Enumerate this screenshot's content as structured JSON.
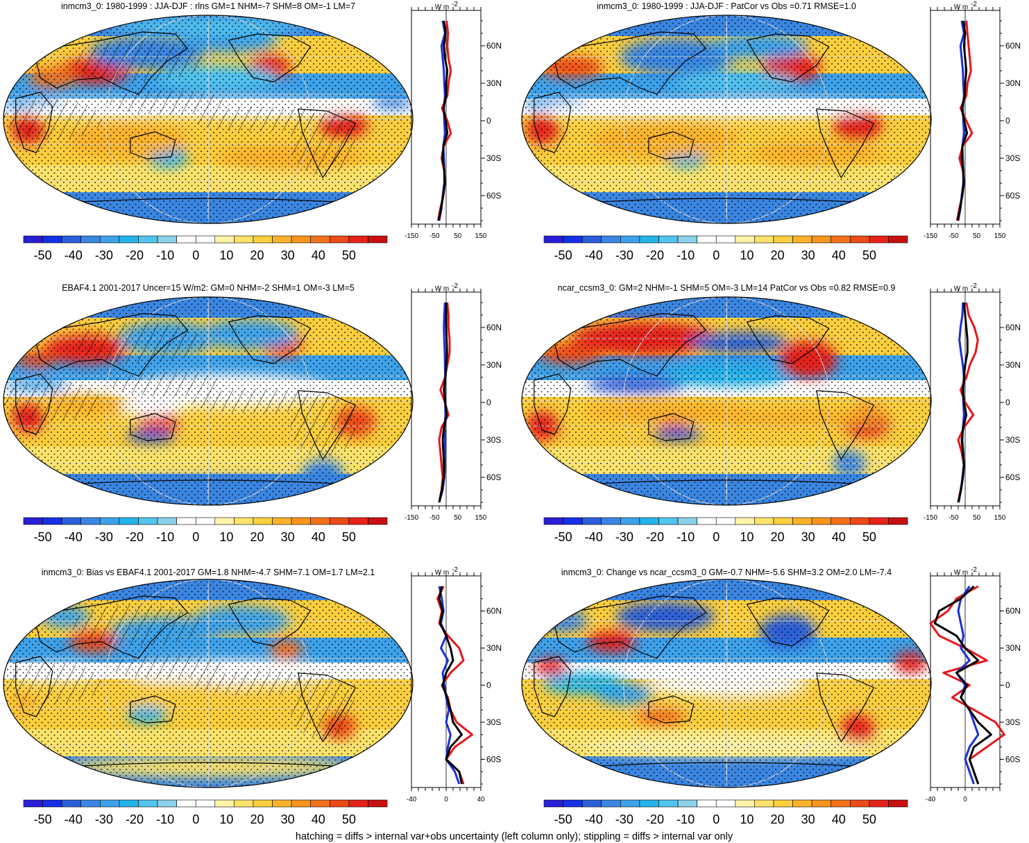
{
  "figure": {
    "footnote": "hatching = diffs > internal var+obs uncertainty (left column only); stippling = diffs > internal var only",
    "unit_label": "W m",
    "unit_exp": "-2",
    "lat_labels": [
      "60N",
      "30N",
      "0",
      "30S",
      "60S"
    ]
  },
  "colors": {
    "scale": [
      "#2a1ed8",
      "#1630e6",
      "#2b5ed9",
      "#3b86e2",
      "#3da2ea",
      "#23b4ea",
      "#52c4ee",
      "#8bd2ea",
      "#ffffff",
      "#ffffff",
      "#fff3a8",
      "#fde36b",
      "#fccf3e",
      "#fbb22a",
      "#f9941c",
      "#f3711a",
      "#ec4a18",
      "#e5231a",
      "#c81010"
    ],
    "zonal_red": "#e8141a",
    "zonal_blue": "#1a2fd6",
    "zonal_black": "#000000"
  },
  "colorbar": {
    "labels": [
      "-50",
      "-40",
      "-30",
      "-20",
      "-10",
      "0",
      "10",
      "20",
      "30",
      "40",
      "50"
    ]
  },
  "panels": [
    {
      "id": "p1",
      "title": "inmcm3_0: 1980-1999 : JJA-DJF : rlns GM=1 NHM=-7 SHM=8 OM=-1 LM=7",
      "hatched": true,
      "zonal_axis": {
        "ticks": [
          "-150",
          "-50",
          "50",
          "150"
        ],
        "xlim": [
          -150,
          150
        ]
      }
    },
    {
      "id": "p2",
      "title": "inmcm3_0: 1980-1999 : JJA-DJF : PatCor vs Obs =0.71 RMSE=1.0",
      "hatched": false,
      "zonal_axis": {
        "ticks": [
          "-150",
          "-50",
          "50",
          "150"
        ],
        "xlim": [
          -150,
          150
        ]
      }
    },
    {
      "id": "p3",
      "title": "EBAF4.1 2001-2017 Uncer=15 W/m2: GM=0 NHM=-2 SHM=1 OM=-3 LM=5",
      "hatched": true,
      "zonal_axis": {
        "ticks": [
          "-150",
          "-50",
          "50",
          "150"
        ],
        "xlim": [
          -150,
          150
        ]
      }
    },
    {
      "id": "p4",
      "title": "ncar_ccsm3_0: GM=2 NHM=-1 SHM=5 OM=-3 LM=14 PatCor vs Obs =0.82 RMSE=0.9",
      "hatched": false,
      "zonal_axis": {
        "ticks": [
          "-150",
          "-50",
          "50",
          "150"
        ],
        "xlim": [
          -150,
          150
        ]
      }
    },
    {
      "id": "p5",
      "title": "inmcm3_0: Bias vs EBAF4.1 2001-2017 GM=1.8 NHM=-4.7 SHM=7.1 OM=1.7 LM=2.1",
      "hatched": true,
      "zonal_axis": {
        "ticks": [
          "-40",
          "0",
          "40"
        ],
        "xlim": [
          -40,
          40
        ]
      }
    },
    {
      "id": "p6",
      "title": "inmcm3_0: Change vs ncar_ccsm3_0 GM=-0.7 NHM=-5.6 SHM=3.2 OM=2.0 LM=-7.4",
      "hatched": false,
      "zonal_axis": {
        "ticks": [
          "-40",
          "0"
        ],
        "xlim": [
          -40,
          40
        ]
      }
    }
  ],
  "chart_data": {
    "type": "heatmap",
    "colorbar_levels": [
      -50,
      -40,
      -30,
      -20,
      -10,
      0,
      10,
      20,
      30,
      40,
      50
    ],
    "zonal_means": [
      {
        "panel": "p1",
        "lat": [
          80,
          70,
          60,
          50,
          40,
          30,
          20,
          10,
          0,
          -10,
          -20,
          -30,
          -40,
          -50,
          -60,
          -70,
          -80
        ],
        "series": [
          {
            "name": "model",
            "color": "red",
            "values": [
              2,
              8,
              5,
              10,
              20,
              10,
              5,
              -18,
              5,
              20,
              -10,
              -20,
              -8,
              -5,
              -12,
              -25,
              -35
            ]
          },
          {
            "name": "obs",
            "color": "blue",
            "values": [
              -15,
              -5,
              -20,
              -15,
              -10,
              -8,
              -5,
              -10,
              -8,
              -5,
              -12,
              -10,
              -8,
              -8,
              -15,
              -20,
              -30
            ]
          },
          {
            "name": "mean",
            "color": "black",
            "values": [
              -10,
              -2,
              -10,
              -5,
              5,
              0,
              0,
              -12,
              -2,
              5,
              -12,
              -15,
              -8,
              -6,
              -13,
              -22,
              -32
            ]
          }
        ]
      },
      {
        "panel": "p2",
        "lat": [
          80,
          70,
          60,
          50,
          40,
          30,
          20,
          10,
          0,
          -10,
          -20,
          -30,
          -40,
          -50,
          -60,
          -70,
          -80
        ],
        "series": [
          {
            "name": "model",
            "color": "red",
            "values": [
              5,
              10,
              15,
              20,
              25,
              10,
              5,
              -20,
              5,
              30,
              -10,
              -25,
              -10,
              -5,
              -12,
              -25,
              -35
            ]
          },
          {
            "name": "obs",
            "color": "blue",
            "values": [
              -15,
              -5,
              -20,
              -15,
              -10,
              -8,
              -5,
              -10,
              -8,
              -5,
              -12,
              -10,
              -8,
              -8,
              -15,
              -20,
              -30
            ]
          },
          {
            "name": "mean",
            "color": "black",
            "values": [
              -8,
              0,
              -5,
              0,
              5,
              0,
              -2,
              -15,
              -4,
              8,
              -12,
              -15,
              -8,
              -6,
              -13,
              -22,
              -32
            ]
          }
        ]
      },
      {
        "panel": "p3",
        "lat": [
          80,
          70,
          60,
          50,
          40,
          30,
          20,
          10,
          0,
          -10,
          -20,
          -30,
          -40,
          -50,
          -60,
          -70,
          -80
        ],
        "series": [
          {
            "name": "model",
            "color": "red",
            "values": [
              5,
              10,
              10,
              15,
              15,
              5,
              -5,
              -25,
              -5,
              10,
              -20,
              -30,
              -25,
              -20,
              -15,
              -20,
              -30
            ]
          },
          {
            "name": "obs",
            "color": "blue",
            "values": [
              -5,
              -8,
              -10,
              -8,
              -6,
              -5,
              -4,
              -6,
              -4,
              -3,
              -6,
              -5,
              -4,
              -5,
              -8,
              -15,
              -30
            ]
          },
          {
            "name": "mean",
            "color": "black",
            "values": [
              0,
              0,
              0,
              2,
              4,
              0,
              -3,
              -10,
              -4,
              2,
              -10,
              -15,
              -12,
              -10,
              -10,
              -18,
              -30
            ]
          }
        ]
      },
      {
        "panel": "p4",
        "lat": [
          80,
          70,
          60,
          50,
          40,
          30,
          20,
          10,
          0,
          -10,
          -20,
          -30,
          -40,
          -50,
          -60,
          -70,
          -80
        ],
        "series": [
          {
            "name": "model",
            "color": "red",
            "values": [
              5,
              15,
              40,
              55,
              45,
              20,
              5,
              -20,
              0,
              35,
              -5,
              -30,
              -15,
              -5,
              -10,
              -20,
              -30
            ]
          },
          {
            "name": "obs",
            "color": "blue",
            "values": [
              -10,
              -12,
              -20,
              -25,
              -18,
              -10,
              -5,
              -8,
              -8,
              -5,
              -10,
              -12,
              -8,
              -6,
              -12,
              -18,
              -28
            ]
          },
          {
            "name": "mean",
            "color": "black",
            "values": [
              -5,
              0,
              5,
              10,
              10,
              0,
              -5,
              -10,
              -5,
              5,
              -8,
              -15,
              -10,
              -5,
              -10,
              -18,
              -30
            ]
          }
        ]
      },
      {
        "panel": "p5",
        "lat": [
          80,
          70,
          60,
          50,
          40,
          30,
          20,
          10,
          0,
          -10,
          -20,
          -30,
          -40,
          -50,
          -60,
          -70,
          -80
        ],
        "series": [
          {
            "name": "model",
            "color": "red",
            "values": [
              -3,
              -10,
              -5,
              -8,
              2,
              15,
              20,
              5,
              -5,
              2,
              5,
              12,
              30,
              10,
              0,
              15,
              20
            ]
          },
          {
            "name": "obs",
            "color": "blue",
            "values": [
              -8,
              -5,
              -3,
              -6,
              0,
              -6,
              2,
              -4,
              -2,
              0,
              3,
              0,
              5,
              2,
              0,
              10,
              15
            ]
          },
          {
            "name": "mean",
            "color": "black",
            "values": [
              -5,
              -8,
              -4,
              -7,
              0,
              5,
              8,
              0,
              -4,
              1,
              5,
              8,
              18,
              5,
              0,
              15,
              18
            ]
          }
        ]
      },
      {
        "panel": "p6",
        "lat": [
          80,
          70,
          60,
          50,
          40,
          30,
          20,
          10,
          0,
          -10,
          -20,
          -30,
          -40,
          -50,
          -60,
          -70,
          -80
        ],
        "series": [
          {
            "name": "model",
            "color": "red",
            "values": [
              15,
              -10,
              -20,
              -40,
              -30,
              0,
              25,
              -25,
              5,
              -15,
              10,
              35,
              45,
              25,
              5,
              10,
              15
            ]
          },
          {
            "name": "obs",
            "color": "blue",
            "values": [
              5,
              -5,
              -8,
              -5,
              -2,
              -5,
              5,
              -10,
              0,
              -5,
              5,
              10,
              15,
              5,
              0,
              5,
              10
            ]
          },
          {
            "name": "mean",
            "color": "black",
            "values": [
              10,
              -5,
              -30,
              -35,
              -10,
              0,
              15,
              -10,
              2,
              -5,
              5,
              15,
              30,
              10,
              5,
              10,
              15
            ]
          }
        ]
      }
    ]
  }
}
